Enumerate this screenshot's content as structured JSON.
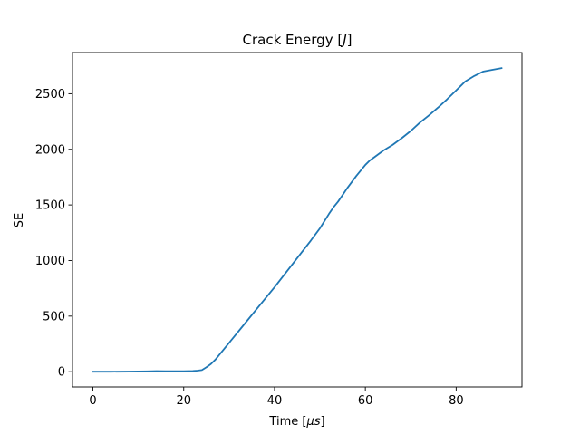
{
  "chart_data": {
    "type": "line",
    "title": "Crack Energy [J]",
    "title_parts": {
      "prefix": "Crack Energy [",
      "italic": "J",
      "suffix": "]"
    },
    "xlabel": "Time [μs]",
    "xlabel_parts": {
      "prefix": "Time [",
      "italic": "μs",
      "suffix": "]"
    },
    "ylabel": "SE",
    "xlim": [
      -4.5,
      94.5
    ],
    "ylim": [
      -137,
      2870
    ],
    "xticks": [
      0,
      20,
      40,
      60,
      80
    ],
    "yticks": [
      0,
      500,
      1000,
      1500,
      2000,
      2500
    ],
    "grid": false,
    "legend": "none",
    "series": [
      {
        "color": "#1f77b4",
        "x": [
          0,
          4,
          8,
          12,
          14,
          16,
          18,
          20,
          22,
          23,
          24,
          25,
          26,
          27,
          28,
          30,
          33,
          36,
          40,
          44,
          48,
          50,
          52,
          53,
          54,
          55,
          56,
          58,
          60,
          61,
          62,
          64,
          66,
          68,
          70,
          72,
          74,
          76,
          78,
          80,
          81,
          82,
          84,
          86,
          88,
          90
        ],
        "y": [
          0,
          0,
          1,
          3,
          5,
          4,
          4,
          4,
          6,
          10,
          15,
          40,
          70,
          110,
          160,
          260,
          410,
          560,
          760,
          970,
          1180,
          1290,
          1420,
          1480,
          1530,
          1590,
          1650,
          1760,
          1860,
          1900,
          1930,
          1990,
          2040,
          2100,
          2165,
          2240,
          2305,
          2375,
          2450,
          2530,
          2570,
          2610,
          2660,
          2700,
          2715,
          2730
        ]
      }
    ]
  }
}
